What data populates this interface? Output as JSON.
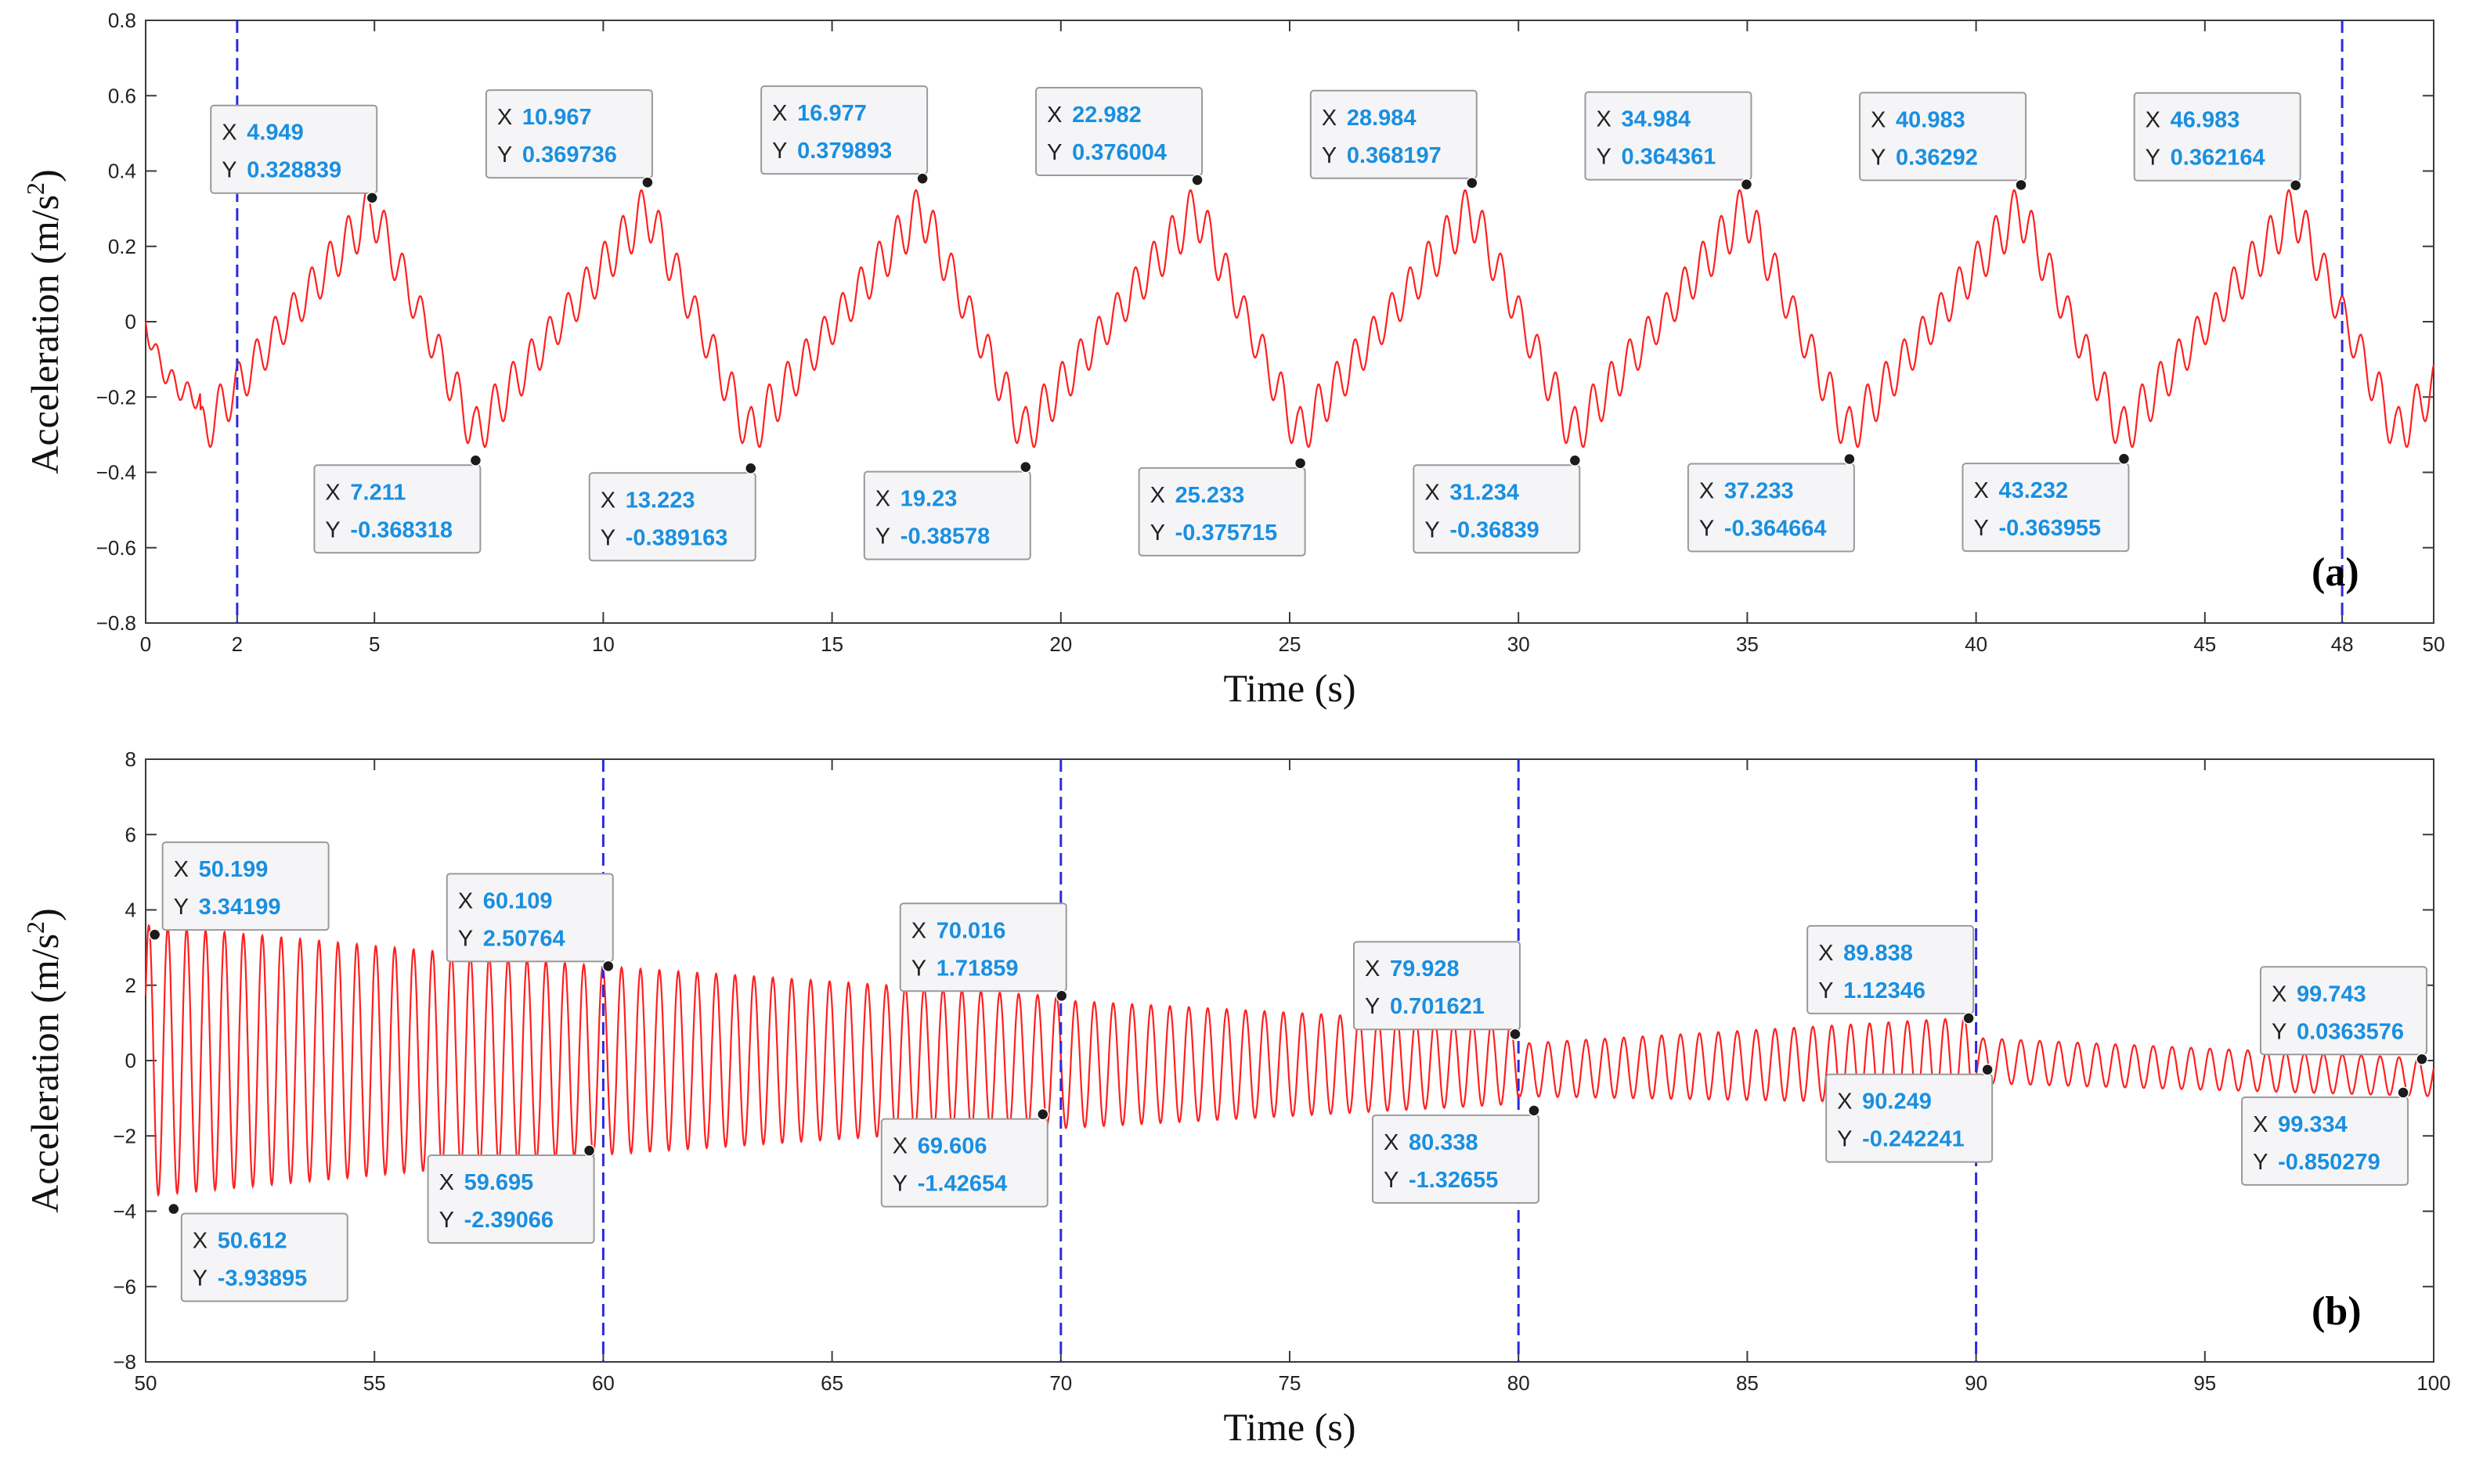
{
  "chart_data": [
    {
      "type": "line",
      "panel": "(a)",
      "xlabel": "Time (s)",
      "ylabel": "Acceleration (m/s",
      "ylabel_sup": "2",
      "ylabel_close": ")",
      "xlim": [
        0,
        50
      ],
      "ylim": [
        -0.8,
        0.8
      ],
      "xticks": [
        0,
        2,
        5,
        10,
        15,
        20,
        25,
        30,
        35,
        40,
        45,
        48,
        50
      ],
      "yticks": [
        -0.8,
        -0.6,
        -0.4,
        -0.2,
        0,
        0.2,
        0.4,
        0.6,
        0.8
      ],
      "ytick_labels": [
        "−0.8",
        "−0.6",
        "−0.4",
        "−0.2",
        "0",
        "0.2",
        "0.4",
        "0.6",
        "0.8"
      ],
      "series_color": "#ff2020",
      "vlines": [
        2,
        48
      ],
      "vline_color": "#2b2bdc",
      "datatips": [
        {
          "x": 4.949,
          "y": 0.328839,
          "xs": "4.949",
          "ys": "0.328839",
          "pos": "above"
        },
        {
          "x": 7.211,
          "y": -0.368318,
          "xs": "7.211",
          "ys": "-0.368318",
          "pos": "below"
        },
        {
          "x": 10.967,
          "y": 0.369736,
          "xs": "10.967",
          "ys": "0.369736",
          "pos": "above"
        },
        {
          "x": 13.223,
          "y": -0.389163,
          "xs": "13.223",
          "ys": "-0.389163",
          "pos": "below"
        },
        {
          "x": 16.977,
          "y": 0.379893,
          "xs": "16.977",
          "ys": "0.379893",
          "pos": "above"
        },
        {
          "x": 19.23,
          "y": -0.38578,
          "xs": "19.23",
          "ys": "-0.38578",
          "pos": "below"
        },
        {
          "x": 22.982,
          "y": 0.376004,
          "xs": "22.982",
          "ys": "0.376004",
          "pos": "above"
        },
        {
          "x": 25.233,
          "y": -0.375715,
          "xs": "25.233",
          "ys": "-0.375715",
          "pos": "below"
        },
        {
          "x": 28.984,
          "y": 0.368197,
          "xs": "28.984",
          "ys": "0.368197",
          "pos": "above"
        },
        {
          "x": 31.234,
          "y": -0.36839,
          "xs": "31.234",
          "ys": "-0.36839",
          "pos": "below"
        },
        {
          "x": 34.984,
          "y": 0.364361,
          "xs": "34.984",
          "ys": "0.364361",
          "pos": "above"
        },
        {
          "x": 37.233,
          "y": -0.364664,
          "xs": "37.233",
          "ys": "-0.364664",
          "pos": "below"
        },
        {
          "x": 40.983,
          "y": 0.36292,
          "xs": "40.983",
          "ys": "0.36292",
          "pos": "above"
        },
        {
          "x": 43.232,
          "y": -0.363955,
          "xs": "43.232",
          "ys": "-0.363955",
          "pos": "below"
        },
        {
          "x": 46.983,
          "y": 0.362164,
          "xs": "46.983",
          "ys": "0.362164",
          "pos": "above"
        }
      ]
    },
    {
      "type": "line",
      "panel": "(b)",
      "xlabel": "Time (s)",
      "ylabel": "Acceleration (m/s",
      "ylabel_sup": "2",
      "ylabel_close": ")",
      "xlim": [
        50,
        100
      ],
      "ylim": [
        -8,
        8
      ],
      "xticks": [
        50,
        55,
        60,
        65,
        70,
        75,
        80,
        85,
        90,
        95,
        100
      ],
      "yticks": [
        -8,
        -6,
        -4,
        -2,
        0,
        2,
        4,
        6,
        8
      ],
      "ytick_labels": [
        "−8",
        "−6",
        "−4",
        "−2",
        "0",
        "2",
        "4",
        "6",
        "8"
      ],
      "series_color": "#ff2020",
      "vlines": [
        60,
        70,
        80,
        90
      ],
      "vline_color": "#2b2bdc",
      "datatips": [
        {
          "x": 50.199,
          "y": 3.34199,
          "xs": "50.199",
          "ys": "3.34199",
          "pos": "above"
        },
        {
          "x": 50.612,
          "y": -3.93895,
          "xs": "50.612",
          "ys": "-3.93895",
          "pos": "below"
        },
        {
          "x": 59.695,
          "y": -2.39066,
          "xs": "59.695",
          "ys": "-2.39066",
          "pos": "below"
        },
        {
          "x": 60.109,
          "y": 2.50764,
          "xs": "60.109",
          "ys": "2.50764",
          "pos": "above"
        },
        {
          "x": 69.606,
          "y": -1.42654,
          "xs": "69.606",
          "ys": "-1.42654",
          "pos": "below"
        },
        {
          "x": 70.016,
          "y": 1.71859,
          "xs": "70.016",
          "ys": "1.71859",
          "pos": "above"
        },
        {
          "x": 79.928,
          "y": 0.701621,
          "xs": "79.928",
          "ys": "0.701621",
          "pos": "above"
        },
        {
          "x": 80.338,
          "y": -1.32655,
          "xs": "80.338",
          "ys": "-1.32655",
          "pos": "below"
        },
        {
          "x": 89.838,
          "y": 1.12346,
          "xs": "89.838",
          "ys": "1.12346",
          "pos": "above"
        },
        {
          "x": 90.249,
          "y": -0.242241,
          "xs": "90.249",
          "ys": "-0.242241",
          "pos": "below"
        },
        {
          "x": 99.334,
          "y": -0.850279,
          "xs": "99.334",
          "ys": "-0.850279",
          "pos": "below"
        },
        {
          "x": 99.743,
          "y": 0.0363576,
          "xs": "99.743",
          "ys": "0.0363576",
          "pos": "above"
        }
      ]
    }
  ],
  "datatip_labels": {
    "x": "X",
    "y": "Y"
  }
}
